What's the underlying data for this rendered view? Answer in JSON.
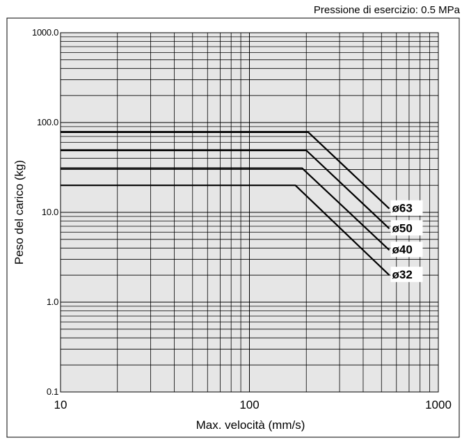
{
  "note": "Pressione di esercizio: 0.5 MPa",
  "chart_data": {
    "type": "line",
    "xlabel": "Max. velocità (mm/s)",
    "ylabel": "Peso del carico (kg)",
    "x_scale": "log",
    "y_scale": "log",
    "xlim": [
      10,
      1000
    ],
    "ylim": [
      0.1,
      1000
    ],
    "x_ticks": [
      10,
      100,
      1000
    ],
    "x_tick_labels": [
      "10",
      "100",
      "1000"
    ],
    "y_ticks": [
      0.1,
      1,
      10,
      100,
      1000
    ],
    "y_tick_labels": [
      "0.1",
      "1.0",
      "10.0",
      "100.0",
      "1000.0"
    ],
    "grid": true,
    "plot_background": "#e6e6e6",
    "line_color": "#000000",
    "series": [
      {
        "name": "ø63",
        "points": [
          [
            10,
            78
          ],
          [
            205,
            78
          ],
          [
            550,
            11
          ]
        ]
      },
      {
        "name": "ø50",
        "points": [
          [
            10,
            49
          ],
          [
            200,
            49
          ],
          [
            550,
            6.6
          ]
        ]
      },
      {
        "name": "ø40",
        "points": [
          [
            10,
            31
          ],
          [
            190,
            31
          ],
          [
            550,
            3.8
          ]
        ]
      },
      {
        "name": "ø32",
        "points": [
          [
            10,
            20
          ],
          [
            175,
            20
          ],
          [
            550,
            2
          ]
        ]
      }
    ]
  }
}
